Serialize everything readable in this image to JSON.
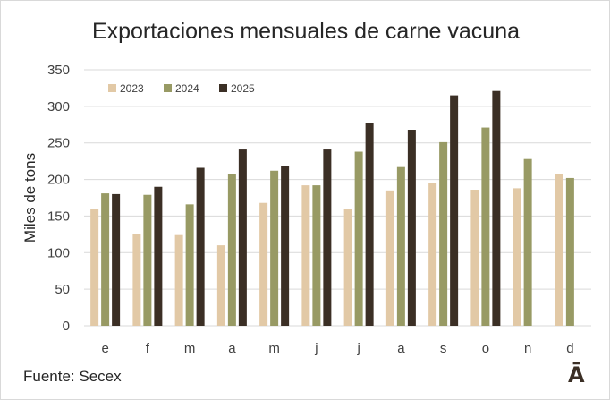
{
  "chart_data": {
    "type": "bar",
    "title": "Exportaciones mensuales de carne vacuna",
    "ylabel": "Miles de tons",
    "xlabel": "",
    "ylim": [
      0,
      350
    ],
    "yticks": [
      0,
      50,
      100,
      150,
      200,
      250,
      300,
      350
    ],
    "grid": true,
    "legend_position": "top-left",
    "categories": [
      "e",
      "f",
      "m",
      "a",
      "m",
      "j",
      "j",
      "a",
      "s",
      "o",
      "n",
      "d"
    ],
    "series": [
      {
        "name": "2023",
        "color": "#e2c9a6",
        "values": [
          160,
          126,
          124,
          110,
          168,
          192,
          160,
          185,
          195,
          186,
          188,
          208
        ]
      },
      {
        "name": "2024",
        "color": "#989a64",
        "values": [
          181,
          179,
          166,
          208,
          212,
          192,
          238,
          217,
          251,
          271,
          228,
          202
        ]
      },
      {
        "name": "2025",
        "color": "#3b2f25",
        "values": [
          180,
          190,
          216,
          241,
          218,
          241,
          277,
          268,
          315,
          321,
          null,
          null
        ]
      }
    ]
  },
  "footer": {
    "source": "Fuente: Secex",
    "logo_text": "Ā"
  }
}
